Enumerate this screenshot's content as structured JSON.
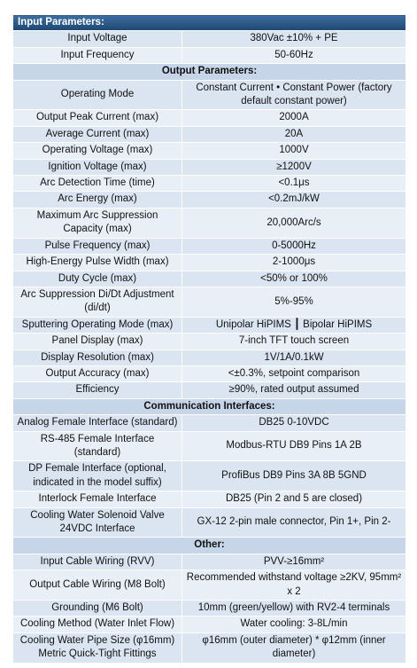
{
  "sections": [
    {
      "title": "Input Parameters:",
      "header_style": true,
      "rows": [
        {
          "label": "Input Voltage",
          "value": "380Vac ±10% + PE"
        },
        {
          "label": "Input Frequency",
          "value": "50-60Hz"
        }
      ]
    },
    {
      "title": "Output Parameters:",
      "rows": [
        {
          "label": "Operating Mode",
          "value": "Constant Current • Constant Power (factory default constant power)"
        },
        {
          "label": "Output Peak Current (max)",
          "value": "2000A"
        },
        {
          "label": "Average Current (max)",
          "value": "20A"
        },
        {
          "label": "Operating Voltage (max)",
          "value": "1000V"
        },
        {
          "label": "Ignition Voltage (max)",
          "value": "≥1200V"
        },
        {
          "label": "Arc Detection Time (time)",
          "value": "<0.1μs"
        },
        {
          "label": "Arc Energy (max)",
          "value": "<0.2mJ/kW"
        },
        {
          "label": "Maximum Arc Suppression Capacity (max)",
          "value": "20,000Arc/s"
        },
        {
          "label": "Pulse Frequency (max)",
          "value": "0-5000Hz"
        },
        {
          "label": "High-Energy Pulse Width (max)",
          "value": "2-1000μs"
        },
        {
          "label": "Duty Cycle (max)",
          "value": "<50% or 100%"
        },
        {
          "label": "Arc Suppression Di/Dt Adjustment (di/dt)",
          "value": "5%-95%"
        },
        {
          "label": "Sputtering Operating Mode (max)",
          "value": "Unipolar HiPIMS ┃ Bipolar HiPIMS"
        },
        {
          "label": "Panel Display (max)",
          "value": "7-inch TFT touch screen"
        },
        {
          "label": "Display Resolution (max)",
          "value": "1V/1A/0.1kW"
        },
        {
          "label": "Output Accuracy (max)",
          "value": "<±0.3%, setpoint comparison"
        },
        {
          "label": "Efficiency",
          "value": "≥90%, rated output assumed"
        }
      ]
    },
    {
      "title": "Communication Interfaces:",
      "rows": [
        {
          "label": "Analog Female Interface (standard)",
          "value": "DB25 0-10VDC"
        },
        {
          "label": "RS-485 Female Interface (standard)",
          "value": "Modbus-RTU DB9 Pins 1A 2B"
        },
        {
          "label": "DP Female Interface (optional, indicated in the model suffix)",
          "value": "ProfiBus DB9 Pins 3A 8B 5GND"
        },
        {
          "label": "Interlock Female Interface",
          "value": "DB25 (Pin 2 and 5 are closed)"
        },
        {
          "label": "Cooling Water Solenoid Valve 24VDC Interface",
          "value": "GX-12 2-pin male connector, Pin 1+, Pin 2-"
        }
      ]
    },
    {
      "title": "Other:",
      "rows": [
        {
          "label": "Input Cable Wiring (RVV)",
          "value": "PVV-≥16mm²"
        },
        {
          "label": "Output Cable Wiring (M8 Bolt)",
          "value": "Recommended withstand voltage ≥2KV, 95mm² x 2"
        },
        {
          "label": "Grounding (M6 Bolt)",
          "value": "10mm (green/yellow) with RV2-4 terminals"
        },
        {
          "label": "Cooling Method (Water Inlet Flow)",
          "value": "Water cooling: 3-8L/min"
        },
        {
          "label": "Cooling Water Pipe Size (φ16mm) Metric Quick-Tight Fittings",
          "value": "φ16mm (outer diameter) * φ12mm (inner diameter)"
        }
      ]
    }
  ]
}
